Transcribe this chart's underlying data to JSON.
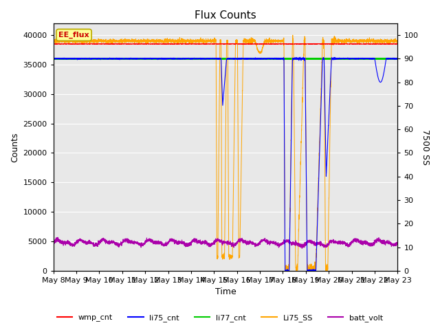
{
  "title": "Flux Counts",
  "ylabel_left": "Counts",
  "ylabel_right": "7500 SS",
  "xlabel": "Time",
  "ylim_left": [
    0,
    42000
  ],
  "ylim_right": [
    0,
    105
  ],
  "yticks_left": [
    0,
    5000,
    10000,
    15000,
    20000,
    25000,
    30000,
    35000,
    40000
  ],
  "yticks_right": [
    0,
    10,
    20,
    30,
    40,
    50,
    60,
    70,
    80,
    90,
    100
  ],
  "xtick_labels": [
    "May 8",
    "May 9",
    "May 10",
    "May 11",
    "May 12",
    "May 13",
    "May 14",
    "May 15",
    "May 16",
    "May 17",
    "May 18",
    "May 19",
    "May 20",
    "May 21",
    "May 22",
    "May 23"
  ],
  "colors": {
    "wmp_cnt": "#ff0000",
    "li75_cnt": "#0000ff",
    "li77_cnt": "#00cc00",
    "Li75_SS": "#ffa500",
    "batt_volt": "#aa00aa"
  },
  "li77_cnt_value": 36000,
  "annotation_box_text": "EE_flux",
  "annotation_box_color": "#ffff99",
  "annotation_box_edge": "#bbaa00",
  "annotation_text_color": "#cc0000",
  "background_color": "#e8e8e8",
  "grid_color": "#ffffff",
  "legend_entries": [
    "wmp_cnt",
    "li75_cnt",
    "li77_cnt",
    "Li75_SS",
    "batt_volt"
  ]
}
